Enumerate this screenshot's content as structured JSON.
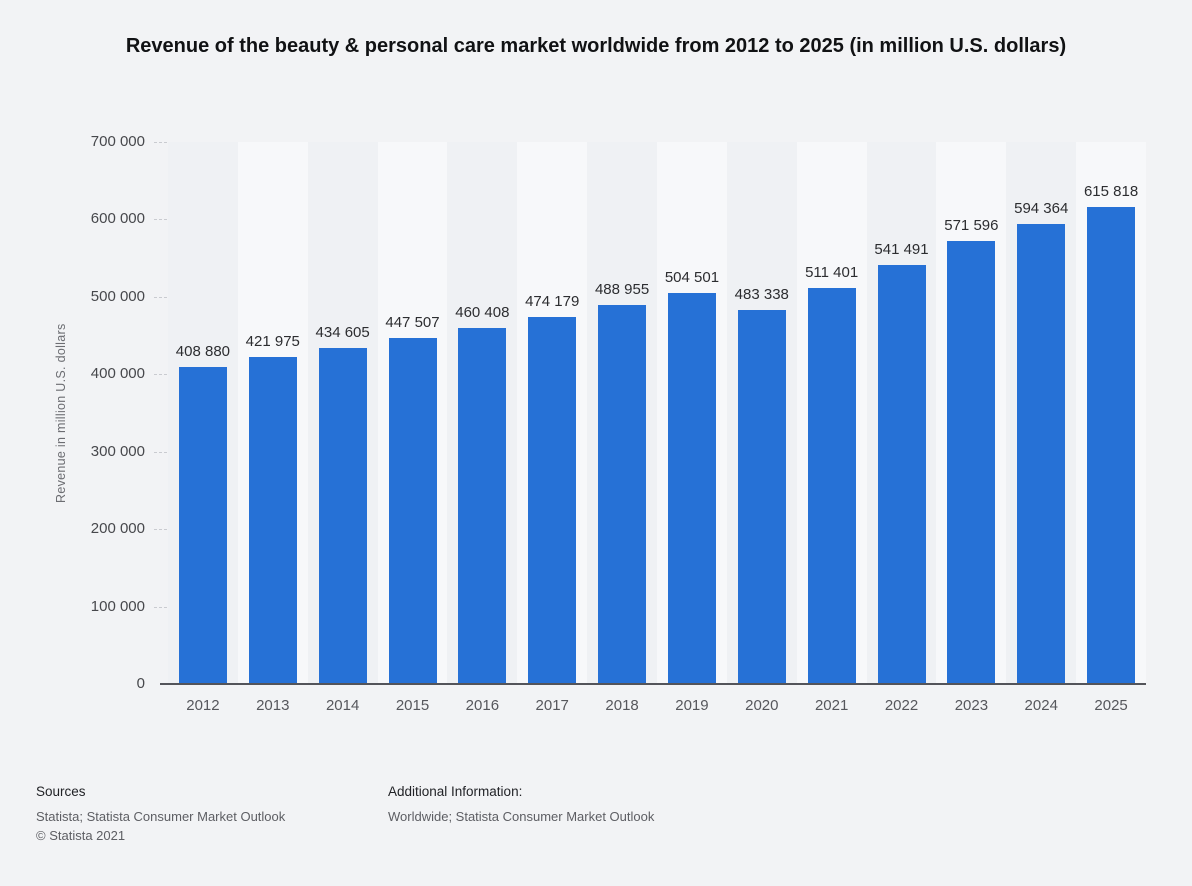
{
  "title": "Revenue of the beauty & personal care market worldwide from 2012 to 2025 (in million U.S. dollars)",
  "chart_data": {
    "type": "bar",
    "categories": [
      "2012",
      "2013",
      "2014",
      "2015",
      "2016",
      "2017",
      "2018",
      "2019",
      "2020",
      "2021",
      "2022",
      "2023",
      "2024",
      "2025"
    ],
    "values": [
      408880,
      421975,
      434605,
      447507,
      460408,
      474179,
      488955,
      504501,
      483338,
      511401,
      541491,
      571596,
      594364,
      615818
    ],
    "value_labels": [
      "408 880",
      "421 975",
      "434 605",
      "447 507",
      "460 408",
      "474 179",
      "488 955",
      "504 501",
      "483 338",
      "511 401",
      "541 491",
      "571 596",
      "594 364",
      "615 818"
    ],
    "title": "Revenue of the beauty & personal care market worldwide from 2012 to 2025 (in million U.S. dollars)",
    "xlabel": "",
    "ylabel": "Revenue in million U.S. dollars",
    "ylim": [
      0,
      700000
    ],
    "ytick_step": 100000,
    "ytick_labels": [
      "0",
      "100 000",
      "200 000",
      "300 000",
      "400 000",
      "500 000",
      "600 000",
      "700 000"
    ],
    "grid": "horizontal-dashed",
    "legend": "none",
    "bar_color": "#2671d6"
  },
  "colors": {
    "background": "#f2f3f5",
    "bar": "#2671d6",
    "axis_line": "#53545a",
    "gridline": "#c9cbd0",
    "band_dark": "#eff1f4",
    "band_light": "#f7f8fa",
    "title_text": "#111214",
    "label_text": "#2c2d30",
    "muted_text": "#5d5e63"
  },
  "footer": {
    "sources_heading": "Sources",
    "sources_line": "Statista; Statista Consumer Market Outlook",
    "copyright": "© Statista 2021",
    "additional_heading": "Additional Information:",
    "additional_line": "Worldwide; Statista Consumer Market Outlook"
  }
}
